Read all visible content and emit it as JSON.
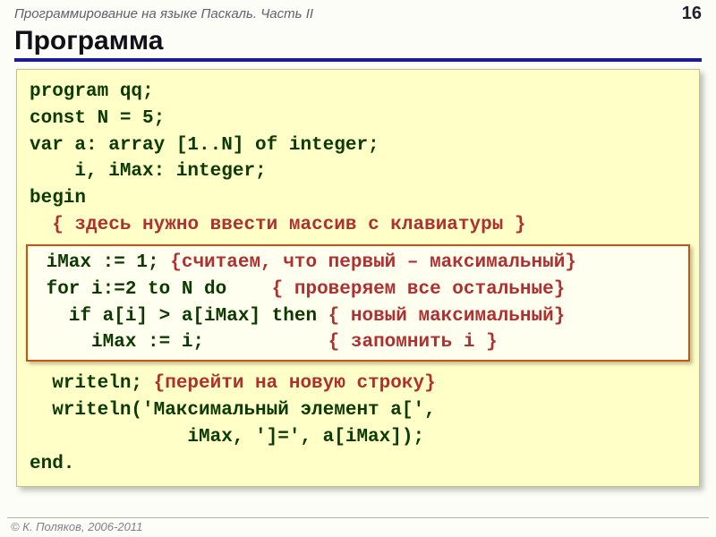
{
  "header": {
    "subtitle": "Программирование на языке Паскаль. Часть II",
    "page_number": "16"
  },
  "title": "Программа",
  "code": {
    "l1": "program qq;",
    "l2": "const N = 5;",
    "l3": "var a: array [1..N] of integer;",
    "l4": "    i, iMax: integer;",
    "l5": "begin",
    "l6_pre": "  ",
    "l6_cmt": "{ здесь нужно ввести массив с клавиатуры }",
    "box": {
      "b1_code": " iMax := 1; ",
      "b1_cmt": "{считаем, что первый – максимальный}",
      "b2_code": " for i:=2 to N do    ",
      "b2_cmt": "{ проверяем все остальные}",
      "b3_code": "   if a[i] > a[iMax] then ",
      "b3_cmt": "{ новый максимальный}",
      "b4_code": "     iMax := i;           ",
      "b4_cmt": "{ запомнить i }"
    },
    "l7_code": "  writeln; ",
    "l7_cmt": "{перейти на новую строку}",
    "l8": "  writeln('Максимальный элемент a[',",
    "l9": "              iMax, ']=', a[iMax]);",
    "l10": "end."
  },
  "footer": "© К. Поляков, 2006-2011",
  "colors": {
    "code_bg": "#ffffc8",
    "keyword": "#0a3a00",
    "comment": "#b03030",
    "title_underline": "#1a1aa8",
    "inner_border": "#d05010"
  }
}
